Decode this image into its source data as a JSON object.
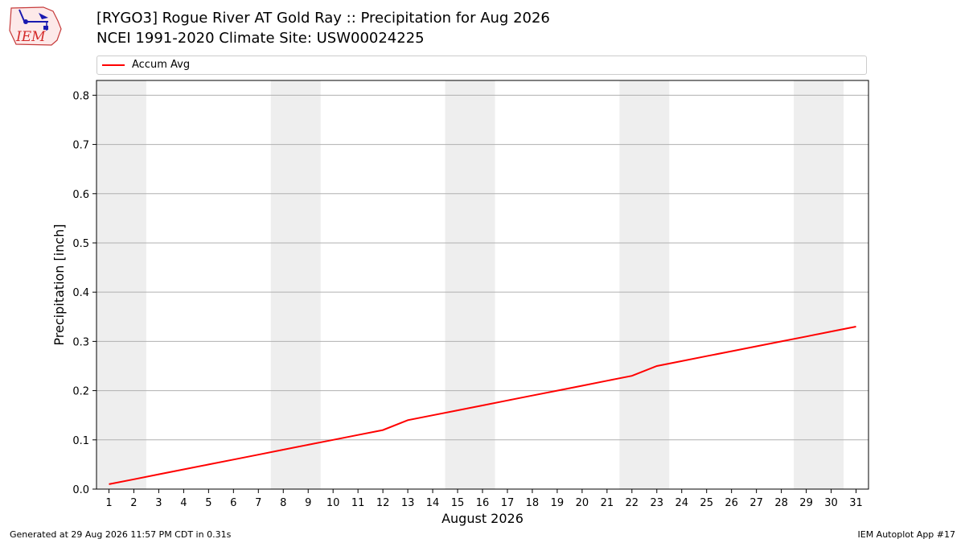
{
  "header": {
    "logo_text": "IEM",
    "title": "[RYGO3] Rogue River  AT Gold Ray :: Precipitation for Aug 2026",
    "subtitle": "NCEI 1991-2020 Climate Site: USW00024225"
  },
  "footer": {
    "left": "Generated at 29 Aug 2026 11:57 PM CDT in 0.31s",
    "right": "IEM Autoplot App #17"
  },
  "colors": {
    "line": "#ff0000",
    "weekend_shade": "#eeeeee",
    "grid": "#b0b0b0"
  },
  "chart_data": {
    "type": "line",
    "xlabel": "August 2026",
    "ylabel": "Precipitation [inch]",
    "x": [
      1,
      2,
      3,
      4,
      5,
      6,
      7,
      8,
      9,
      10,
      11,
      12,
      13,
      14,
      15,
      16,
      17,
      18,
      19,
      20,
      21,
      22,
      23,
      24,
      25,
      26,
      27,
      28,
      29,
      30,
      31
    ],
    "xlim": [
      0.5,
      31.5
    ],
    "ylim": [
      0,
      0.83
    ],
    "yticks": [
      0.0,
      0.1,
      0.2,
      0.3,
      0.4,
      0.5,
      0.6,
      0.7,
      0.8
    ],
    "ytick_labels": [
      "0.0",
      "0.1",
      "0.2",
      "0.3",
      "0.4",
      "0.5",
      "0.6",
      "0.7",
      "0.8"
    ],
    "grid": "y",
    "legend": "top",
    "shaded_days": [
      [
        1,
        2
      ],
      [
        8,
        9
      ],
      [
        15,
        16
      ],
      [
        22,
        23
      ],
      [
        29,
        30
      ]
    ],
    "series": [
      {
        "name": "Accum Avg",
        "color": "#ff0000",
        "values": [
          0.01,
          0.02,
          0.03,
          0.04,
          0.05,
          0.06,
          0.07,
          0.08,
          0.09,
          0.1,
          0.11,
          0.12,
          0.14,
          0.15,
          0.16,
          0.17,
          0.18,
          0.19,
          0.2,
          0.21,
          0.22,
          0.23,
          0.25,
          0.26,
          0.27,
          0.28,
          0.29,
          0.3,
          0.31,
          0.32,
          0.33
        ]
      }
    ]
  }
}
